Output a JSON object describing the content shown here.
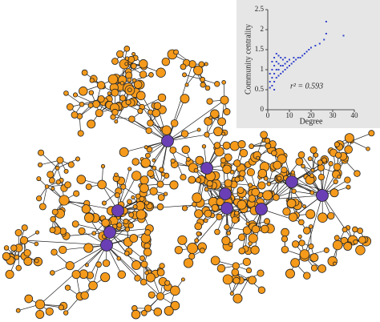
{
  "chart_data": {
    "type": "scatter",
    "x_label": "Degree",
    "y_label": "Community centrality",
    "annotation": "r² = 0.593",
    "color": "#3344cc",
    "x": [
      1,
      1,
      2,
      2,
      2,
      3,
      3,
      3,
      3,
      4,
      4,
      4,
      4,
      5,
      5,
      5,
      5,
      6,
      6,
      6,
      7,
      7,
      7,
      8,
      8,
      8,
      9,
      9,
      10,
      10,
      11,
      12,
      12,
      13,
      14,
      15,
      16,
      17,
      18,
      19,
      20,
      22,
      24,
      26,
      27,
      27,
      35,
      1,
      2,
      3
    ],
    "values": [
      0.55,
      0.7,
      0.6,
      0.8,
      1.0,
      0.7,
      0.9,
      1.1,
      1.3,
      0.8,
      1.0,
      1.2,
      1.4,
      0.85,
      1.0,
      1.15,
      1.35,
      0.9,
      1.1,
      1.3,
      0.95,
      1.1,
      1.25,
      1.0,
      1.15,
      1.3,
      1.05,
      1.2,
      1.1,
      1.25,
      1.15,
      1.2,
      1.3,
      1.25,
      1.3,
      1.3,
      1.35,
      1.4,
      1.45,
      1.5,
      1.55,
      1.6,
      1.65,
      1.75,
      2.2,
      1.9,
      1.85,
      0.9,
      1.2,
      0.5
    ],
    "xlim": [
      0,
      40
    ],
    "xticks": [
      0,
      10,
      20,
      30,
      40
    ],
    "ylim": [
      0,
      2.5
    ],
    "yticks": [
      0,
      0.5,
      1,
      1.5,
      2,
      2.5
    ]
  }
}
